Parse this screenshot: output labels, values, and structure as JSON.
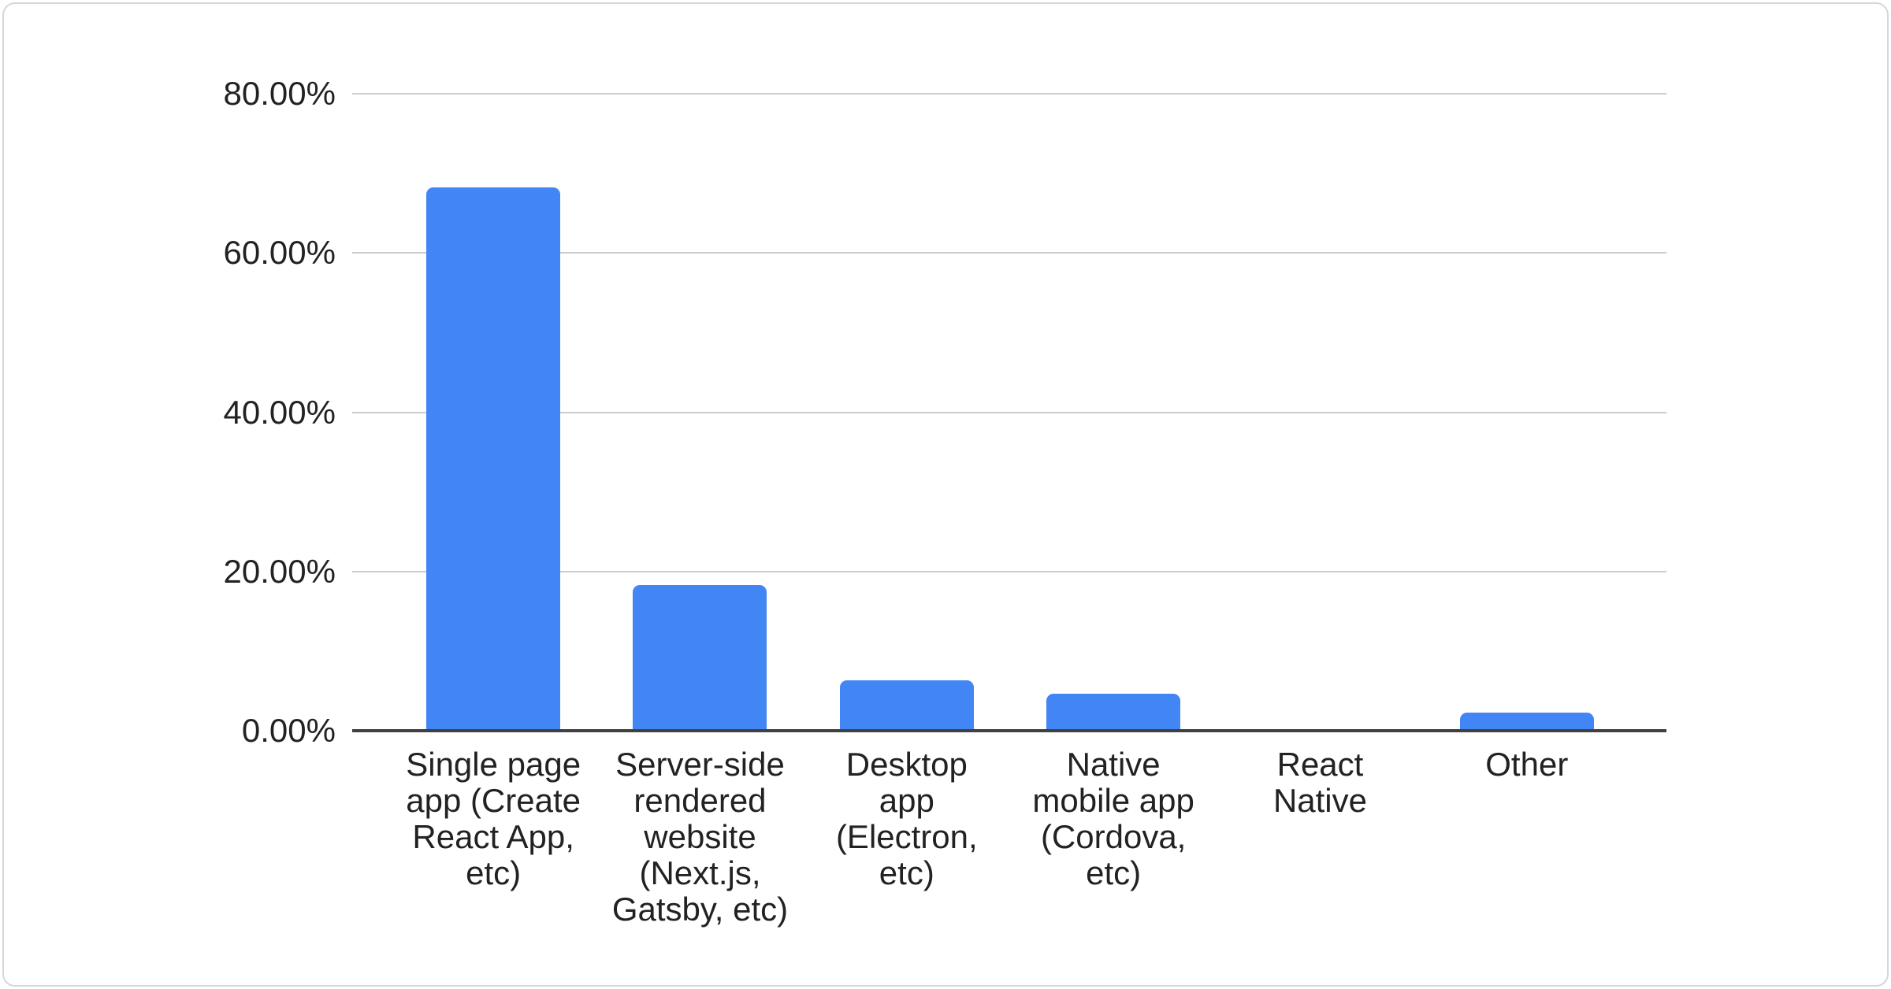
{
  "page": {
    "background_color": "#ffffff"
  },
  "card": {
    "background_color": "#ffffff",
    "border_color": "#d6d7db"
  },
  "chart_data": {
    "type": "bar",
    "title": "",
    "xlabel": "",
    "ylabel": "",
    "legend": "none",
    "grid": true,
    "ylim": [
      0,
      80
    ],
    "y_unit": "percent",
    "y_ticks": [
      {
        "label": "80.00%",
        "value": 80
      },
      {
        "label": "60.00%",
        "value": 60
      },
      {
        "label": "40.00%",
        "value": 40
      },
      {
        "label": "20.00%",
        "value": 20
      },
      {
        "label": "0.00%",
        "value": 0
      }
    ],
    "categories": [
      "Single page app (Create React App, etc)",
      "Server-side rendered website (Next.js, Gatsby, etc)",
      "Desktop app (Electron, etc)",
      "Native mobile app (Cordova, etc)",
      "React Native",
      "Other"
    ],
    "category_lines": [
      [
        "Single page",
        "app (Create",
        "React App,",
        "etc)"
      ],
      [
        "Server-side",
        "rendered",
        "website",
        "(Next.js,",
        "Gatsby, etc)"
      ],
      [
        "Desktop",
        "app",
        "(Electron,",
        "etc)"
      ],
      [
        "Native",
        "mobile app",
        "(Cordova,",
        "etc)"
      ],
      [
        "React",
        "Native"
      ],
      [
        "Other"
      ]
    ],
    "values": [
      68.2,
      18.3,
      6.3,
      4.6,
      0,
      2.3
    ],
    "bar_color": "#4285f4",
    "gridline_color": "#cccccc",
    "axis_line_color": "#404040",
    "text_color": "#222222"
  }
}
